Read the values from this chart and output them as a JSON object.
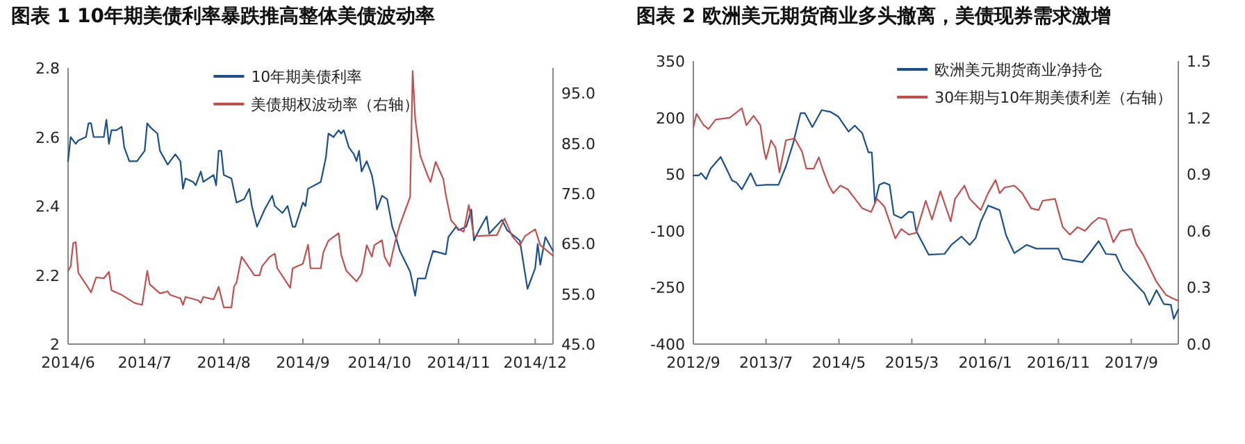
{
  "chart_data": [
    {
      "type": "line",
      "title": "图表 1 10年期美债利率暴跌推高整体美债波动率",
      "legend": "top",
      "xlim": [
        "2014-06-01",
        "2014-12-08"
      ],
      "xticks": [
        {
          "value": "2014-06-01",
          "label": "2014/6"
        },
        {
          "value": "2014-07-01",
          "label": "2014/7"
        },
        {
          "value": "2014-08-01",
          "label": "2014/8"
        },
        {
          "value": "2014-09-01",
          "label": "2014/9"
        },
        {
          "value": "2014-10-01",
          "label": "2014/10"
        },
        {
          "value": "2014-11-01",
          "label": "2014/11"
        },
        {
          "value": "2014-12-01",
          "label": "2014/12"
        }
      ],
      "ylim": [
        2,
        2.8
      ],
      "yticks": [
        2,
        2.2,
        2.4,
        2.6,
        2.8
      ],
      "y2lim": [
        45,
        100
      ],
      "y2ticks": [
        {
          "value": 45,
          "label": "45.0"
        },
        {
          "value": 55,
          "label": "55.0"
        },
        {
          "value": 65,
          "label": "65.0"
        },
        {
          "value": 75,
          "label": "75.0"
        },
        {
          "value": 85,
          "label": "85.0"
        },
        {
          "value": 95,
          "label": "95.0"
        }
      ],
      "series": [
        {
          "name": "10年期美债利率",
          "color": "#1a4f8b",
          "x": [
            "2014-06-01",
            "2014-06-02",
            "2014-06-04",
            "2014-06-05",
            "2014-06-08",
            "2014-06-09",
            "2014-06-10",
            "2014-06-11",
            "2014-06-15",
            "2014-06-16",
            "2014-06-17",
            "2014-06-18",
            "2014-06-20",
            "2014-06-22",
            "2014-06-23",
            "2014-06-25",
            "2014-06-28",
            "2014-07-01",
            "2014-07-02",
            "2014-07-03",
            "2014-07-06",
            "2014-07-07",
            "2014-07-10",
            "2014-07-13",
            "2014-07-15",
            "2014-07-16",
            "2014-07-17",
            "2014-07-20",
            "2014-07-21",
            "2014-07-23",
            "2014-07-24",
            "2014-07-28",
            "2014-07-29",
            "2014-07-30",
            "2014-07-31",
            "2014-08-01",
            "2014-08-04",
            "2014-08-06",
            "2014-08-09",
            "2014-08-11",
            "2014-08-12",
            "2014-08-14",
            "2014-08-17",
            "2014-08-20",
            "2014-08-21",
            "2014-08-24",
            "2014-08-26",
            "2014-08-28",
            "2014-08-29",
            "2014-09-01",
            "2014-09-02",
            "2014-09-03",
            "2014-09-08",
            "2014-09-10",
            "2014-09-11",
            "2014-09-13",
            "2014-09-15",
            "2014-09-16",
            "2014-09-17",
            "2014-09-19",
            "2014-09-21",
            "2014-09-22",
            "2014-09-23",
            "2014-09-24",
            "2014-09-26",
            "2014-09-28",
            "2014-09-29",
            "2014-09-30",
            "2014-10-02",
            "2014-10-04",
            "2014-10-06",
            "2014-10-07",
            "2014-10-09",
            "2014-10-13",
            "2014-10-15",
            "2014-10-16",
            "2014-10-19",
            "2014-10-20",
            "2014-10-22",
            "2014-10-27",
            "2014-10-28",
            "2014-10-31",
            "2014-11-01",
            "2014-11-04",
            "2014-11-06",
            "2014-11-07",
            "2014-11-09",
            "2014-11-12",
            "2014-11-13",
            "2014-11-18",
            "2014-11-20",
            "2014-11-25",
            "2014-11-28",
            "2014-12-01",
            "2014-12-02",
            "2014-12-03",
            "2014-12-05",
            "2014-12-08"
          ],
          "values": [
            2.53,
            2.6,
            2.58,
            2.59,
            2.6,
            2.64,
            2.64,
            2.6,
            2.6,
            2.65,
            2.58,
            2.62,
            2.62,
            2.63,
            2.57,
            2.53,
            2.53,
            2.56,
            2.64,
            2.63,
            2.61,
            2.56,
            2.52,
            2.55,
            2.53,
            2.45,
            2.48,
            2.47,
            2.46,
            2.5,
            2.47,
            2.49,
            2.46,
            2.56,
            2.56,
            2.49,
            2.48,
            2.41,
            2.42,
            2.45,
            2.4,
            2.34,
            2.39,
            2.43,
            2.4,
            2.38,
            2.4,
            2.34,
            2.34,
            2.41,
            2.4,
            2.45,
            2.47,
            2.54,
            2.61,
            2.6,
            2.62,
            2.61,
            2.62,
            2.57,
            2.55,
            2.53,
            2.56,
            2.5,
            2.53,
            2.49,
            2.45,
            2.39,
            2.43,
            2.42,
            2.34,
            2.32,
            2.27,
            2.21,
            2.14,
            2.19,
            2.19,
            2.22,
            2.27,
            2.26,
            2.31,
            2.34,
            2.33,
            2.34,
            2.39,
            2.3,
            2.33,
            2.37,
            2.32,
            2.36,
            2.33,
            2.3,
            2.16,
            2.22,
            2.29,
            2.23,
            2.31,
            2.27
          ]
        },
        {
          "name": "美债期权波动率（右轴）",
          "color": "#c0504d",
          "axis": "y2",
          "x": [
            "2014-06-01",
            "2014-06-02",
            "2014-06-03",
            "2014-06-04",
            "2014-06-05",
            "2014-06-08",
            "2014-06-10",
            "2014-06-12",
            "2014-06-15",
            "2014-06-17",
            "2014-06-18",
            "2014-06-22",
            "2014-06-27",
            "2014-06-30",
            "2014-07-02",
            "2014-07-03",
            "2014-07-07",
            "2014-07-10",
            "2014-07-11",
            "2014-07-15",
            "2014-07-16",
            "2014-07-17",
            "2014-07-22",
            "2014-07-23",
            "2014-07-24",
            "2014-07-28",
            "2014-07-30",
            "2014-08-01",
            "2014-08-04",
            "2014-08-05",
            "2014-08-06",
            "2014-08-08",
            "2014-08-13",
            "2014-08-15",
            "2014-08-16",
            "2014-08-19",
            "2014-08-21",
            "2014-08-22",
            "2014-08-27",
            "2014-08-28",
            "2014-09-01",
            "2014-09-03",
            "2014-09-04",
            "2014-09-08",
            "2014-09-09",
            "2014-09-11",
            "2014-09-15",
            "2014-09-16",
            "2014-09-18",
            "2014-09-22",
            "2014-09-24",
            "2014-09-26",
            "2014-09-28",
            "2014-09-29",
            "2014-10-02",
            "2014-10-03",
            "2014-10-05",
            "2014-10-07",
            "2014-10-09",
            "2014-10-13",
            "2014-10-14",
            "2014-10-15",
            "2014-10-17",
            "2014-10-20",
            "2014-10-21",
            "2014-10-23",
            "2014-10-26",
            "2014-10-27",
            "2014-10-29",
            "2014-11-01",
            "2014-11-03",
            "2014-11-05",
            "2014-11-07",
            "2014-11-16",
            "2014-11-19",
            "2014-11-22",
            "2014-11-25",
            "2014-11-27",
            "2014-12-01",
            "2014-12-03",
            "2014-12-08"
          ],
          "values": [
            59.6,
            60.5,
            65.1,
            65.3,
            59.2,
            56.9,
            55.3,
            58.3,
            58.1,
            59.4,
            55.7,
            54.8,
            53.2,
            52.8,
            59.6,
            56.9,
            55.1,
            55.5,
            54.8,
            54.1,
            52.8,
            54.4,
            53.7,
            53.2,
            54.4,
            53.9,
            56.4,
            52.3,
            52.3,
            56.4,
            57.3,
            62.4,
            58.7,
            58.7,
            60.5,
            62.4,
            63.0,
            60.1,
            56.2,
            60.1,
            61.0,
            64.8,
            60.1,
            60.1,
            63.3,
            65.6,
            67.1,
            62.8,
            59.6,
            57.5,
            59.0,
            64.7,
            62.4,
            64.7,
            65.7,
            62.4,
            60.5,
            65.1,
            68.8,
            74.3,
            99.4,
            89.8,
            82.5,
            78.4,
            77.3,
            81.3,
            77.9,
            74.7,
            69.7,
            67.9,
            67.4,
            72.7,
            66.5,
            66.7,
            70.0,
            66.5,
            64.7,
            66.5,
            67.9,
            64.7,
            62.6
          ]
        }
      ]
    },
    {
      "type": "line",
      "title": "图表 2 欧洲美元期货商业多头撤离，美债现券需求激增",
      "legend": "top right",
      "xlim": [
        "2012-09-01",
        "2018-03-16"
      ],
      "xticks": [
        {
          "value": "2012-09-01",
          "label": "2012/9"
        },
        {
          "value": "2013-07-01",
          "label": "2013/7"
        },
        {
          "value": "2014-05-01",
          "label": "2014/5"
        },
        {
          "value": "2015-03-01",
          "label": "2015/3"
        },
        {
          "value": "2016-01-01",
          "label": "2016/1"
        },
        {
          "value": "2016-11-01",
          "label": "2016/11"
        },
        {
          "value": "2017-09-01",
          "label": "2017/9"
        }
      ],
      "ylim": [
        -400,
        350
      ],
      "yticks": [
        -400,
        -250,
        -100,
        50,
        200,
        350
      ],
      "y2lim": [
        0,
        1.5
      ],
      "y2ticks": [
        {
          "value": 0,
          "label": "0.0"
        },
        {
          "value": 0.3,
          "label": "0.3"
        },
        {
          "value": 0.6,
          "label": "0.6"
        },
        {
          "value": 0.9,
          "label": "0.9"
        },
        {
          "value": 1.2,
          "label": "1.2"
        },
        {
          "value": 1.5,
          "label": "1.5"
        }
      ],
      "series": [
        {
          "name": "欧洲美元期货商业净持仓",
          "color": "#1a4f8b",
          "x": [
            "2012-09-01",
            "2012-09-24",
            "2012-10-03",
            "2012-10-24",
            "2012-11-12",
            "2012-12-24",
            "2013-01-12",
            "2013-02-09",
            "2013-02-28",
            "2013-03-22",
            "2013-04-28",
            "2013-05-22",
            "2013-07-01",
            "2013-08-22",
            "2013-09-22",
            "2013-10-22",
            "2013-11-22",
            "2013-12-10",
            "2014-01-10",
            "2014-02-18",
            "2014-03-28",
            "2014-04-28",
            "2014-06-10",
            "2014-07-06",
            "2014-08-06",
            "2014-09-01",
            "2014-09-15",
            "2014-09-28",
            "2014-10-16",
            "2014-11-06",
            "2014-11-28",
            "2014-12-16",
            "2015-01-16",
            "2015-02-16",
            "2015-03-06",
            "2015-03-19",
            "2015-05-10",
            "2015-07-15",
            "2015-08-13",
            "2015-09-24",
            "2015-10-28",
            "2015-11-22",
            "2015-12-13",
            "2016-01-13",
            "2016-03-01",
            "2016-03-28",
            "2016-05-01",
            "2016-06-22",
            "2016-08-01",
            "2016-11-01",
            "2016-11-19",
            "2017-02-09",
            "2017-03-09",
            "2017-04-18",
            "2017-05-18",
            "2017-06-28",
            "2017-07-28",
            "2017-09-28",
            "2017-10-25",
            "2017-11-15",
            "2017-12-15",
            "2018-01-15",
            "2018-02-13",
            "2018-02-25",
            "2018-03-16"
          ],
          "values": [
            47,
            47,
            53,
            37,
            65,
            96,
            71,
            34,
            28,
            10,
            53,
            20,
            22,
            22,
            71,
            132,
            212,
            212,
            175,
            220,
            215,
            203,
            163,
            179,
            159,
            108,
            108,
            -27,
            22,
            28,
            22,
            -57,
            -66,
            -49,
            -51,
            -100,
            -163,
            -161,
            -137,
            -115,
            -137,
            -119,
            -76,
            -33,
            -45,
            -112,
            -159,
            -137,
            -147,
            -147,
            -174,
            -183,
            -161,
            -127,
            -161,
            -163,
            -204,
            -247,
            -265,
            -296,
            -257,
            -294,
            -296,
            -333,
            -308
          ]
        },
        {
          "name": "30年期与10年期美债利差（右轴）",
          "color": "#c0504d",
          "axis": "y2",
          "x": [
            "2012-09-01",
            "2012-09-14",
            "2012-10-14",
            "2012-11-03",
            "2012-12-03",
            "2013-01-31",
            "2013-03-22",
            "2013-04-10",
            "2013-05-10",
            "2013-06-07",
            "2013-06-22",
            "2013-07-01",
            "2013-07-22",
            "2013-08-10",
            "2013-08-26",
            "2013-09-22",
            "2013-10-28",
            "2013-11-28",
            "2013-12-16",
            "2014-01-16",
            "2014-02-06",
            "2014-02-24",
            "2014-03-20",
            "2014-04-07",
            "2014-05-07",
            "2014-06-07",
            "2014-07-01",
            "2014-08-06",
            "2014-09-12",
            "2014-10-06",
            "2014-11-06",
            "2014-12-06",
            "2014-12-22",
            "2015-01-16",
            "2015-02-16",
            "2015-03-19",
            "2015-04-28",
            "2015-05-24",
            "2015-06-28",
            "2015-08-10",
            "2015-08-28",
            "2015-10-06",
            "2015-10-28",
            "2015-12-13",
            "2016-01-13",
            "2016-02-13",
            "2016-03-01",
            "2016-03-22",
            "2016-05-01",
            "2016-06-03",
            "2016-07-10",
            "2016-08-10",
            "2016-08-28",
            "2016-10-18",
            "2016-11-19",
            "2016-12-19",
            "2017-01-20",
            "2017-02-20",
            "2017-03-20",
            "2017-04-18",
            "2017-05-18",
            "2017-06-18",
            "2017-07-18",
            "2017-09-01",
            "2017-09-22",
            "2017-10-22",
            "2017-11-22",
            "2017-12-15",
            "2018-01-24",
            "2018-02-25",
            "2018-03-16"
          ],
          "values": [
            1.15,
            1.22,
            1.16,
            1.14,
            1.19,
            1.2,
            1.25,
            1.16,
            1.21,
            1.16,
            1.03,
            0.98,
            1.08,
            1.04,
            0.91,
            1.08,
            1.09,
            1.02,
            0.93,
            0.93,
            0.99,
            0.92,
            0.84,
            0.8,
            0.84,
            0.82,
            0.78,
            0.72,
            0.7,
            0.77,
            0.73,
            0.62,
            0.56,
            0.61,
            0.58,
            0.59,
            0.76,
            0.66,
            0.81,
            0.65,
            0.77,
            0.84,
            0.77,
            0.71,
            0.8,
            0.87,
            0.8,
            0.83,
            0.84,
            0.8,
            0.72,
            0.71,
            0.76,
            0.77,
            0.62,
            0.58,
            0.62,
            0.6,
            0.64,
            0.67,
            0.66,
            0.54,
            0.6,
            0.61,
            0.53,
            0.47,
            0.39,
            0.33,
            0.26,
            0.24,
            0.23
          ]
        }
      ]
    }
  ]
}
